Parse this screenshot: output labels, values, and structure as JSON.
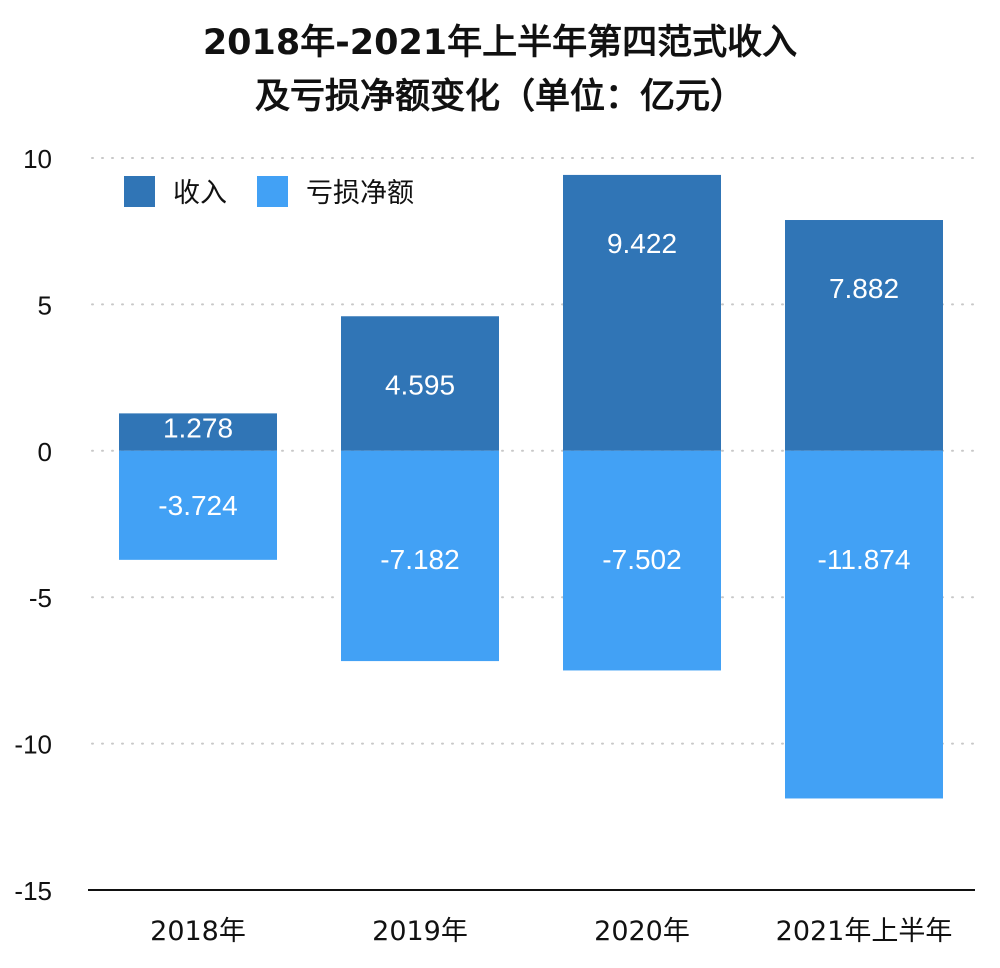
{
  "chart_data": {
    "type": "bar",
    "stacked": true,
    "title": [
      "2018年-2021年上半年第四范式收入",
      "及亏损净额变化（单位：亿元）"
    ],
    "categories": [
      "2018年",
      "2019年",
      "2020年",
      "2021年上半年"
    ],
    "series": [
      {
        "name": "收入",
        "values": [
          1.278,
          4.595,
          9.422,
          7.882
        ],
        "color": "#3075b6",
        "labels": [
          "1.278",
          "4.595",
          "9.422",
          "7.882"
        ]
      },
      {
        "name": "亏损净额",
        "values": [
          -3.724,
          -7.182,
          -7.502,
          -11.874
        ],
        "color": "#42a1f5",
        "labels": [
          "-3.724",
          "-7.182",
          "-7.502",
          "-11.874"
        ]
      }
    ],
    "ylim": [
      -15,
      10
    ],
    "yticks": [
      10,
      5,
      0,
      -5,
      -10,
      -15
    ],
    "ytick_labels": [
      "10",
      "5",
      "0",
      "-5",
      "-10",
      "-15"
    ],
    "grid": true,
    "legend": "top-left",
    "xlabel": "",
    "ylabel": ""
  }
}
